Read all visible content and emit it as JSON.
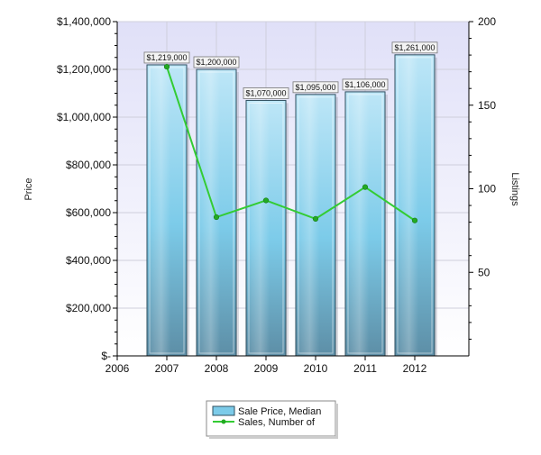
{
  "chart_data": {
    "type": "bar",
    "x_ticks": [
      "2006",
      "2007",
      "2008",
      "2009",
      "2010",
      "2011",
      "2012"
    ],
    "categories": [
      "2007",
      "2008",
      "2009",
      "2010",
      "2011",
      "2012"
    ],
    "series": [
      {
        "name": "Sale Price, Median",
        "type": "bar",
        "axis": "left",
        "values": [
          1219000,
          1200000,
          1070000,
          1095000,
          1106000,
          1261000
        ],
        "labels": [
          "$1,219,000",
          "$1,200,000",
          "$1,070,000",
          "$1,095,000",
          "$1,106,000",
          "$1,261,000"
        ]
      },
      {
        "name": "Sales, Number of",
        "type": "line",
        "axis": "right",
        "values": [
          173,
          83,
          93,
          82,
          101,
          81
        ]
      }
    ],
    "ylabel": "Price",
    "y2label": "Listings",
    "ylim": [
      0,
      1400000
    ],
    "y2lim": [
      0,
      200
    ],
    "y_ticks": [
      {
        "value": 1400000,
        "label": "$1,400,000"
      },
      {
        "value": 1200000,
        "label": "$1,200,000"
      },
      {
        "value": 1000000,
        "label": "$1,000,000"
      },
      {
        "value": 800000,
        "label": "$800,000"
      },
      {
        "value": 600000,
        "label": "$600,000"
      },
      {
        "value": 400000,
        "label": "$400,000"
      },
      {
        "value": 200000,
        "label": "$200,000"
      },
      {
        "value": 0,
        "label": "$-"
      }
    ],
    "y2_ticks": [
      {
        "value": 200,
        "label": "200"
      },
      {
        "value": 150,
        "label": "150"
      },
      {
        "value": 100,
        "label": "100"
      },
      {
        "value": 50,
        "label": "50"
      }
    ],
    "grid": true,
    "legend_position": "bottom-center",
    "colors": {
      "bar_fill_top": "#bde6f7",
      "bar_fill_mid": "#7ccbe9",
      "bar_fill_bottom": "#5d8ea6",
      "bar_border": "#2f4f5f",
      "line": "#33cc33",
      "line_marker": "#22aa22",
      "plot_bg_top": "#e0e0f8",
      "plot_bg_bottom": "#ffffff",
      "grid": "#cfcfdc"
    }
  }
}
